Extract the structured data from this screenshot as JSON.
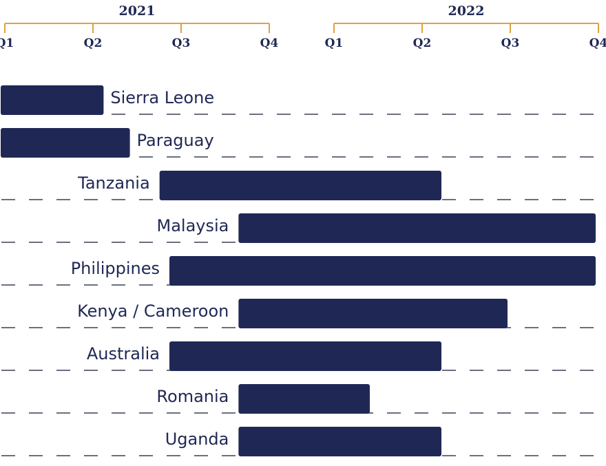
{
  "chart_data": {
    "type": "gantt",
    "years": [
      {
        "label": "2021",
        "quarters": [
          "Q1",
          "Q2",
          "Q3",
          "Q4"
        ]
      },
      {
        "label": "2022",
        "quarters": [
          "Q1",
          "Q2",
          "Q3",
          "Q4"
        ]
      }
    ],
    "series_color": "#1f2855",
    "axis_color": "#e0a040",
    "rows": [
      {
        "label": "Sierra Leone",
        "start": 2020.95,
        "end": 2021.3,
        "label_position": "right"
      },
      {
        "label": "Paraguay",
        "start": 2020.95,
        "end": 2021.38,
        "label_position": "right"
      },
      {
        "label": "Tanzania",
        "start": 2021.47,
        "end": 2022.39,
        "label_position": "left"
      },
      {
        "label": "Malaysia",
        "start": 2021.71,
        "end": 2022.95,
        "label_position": "left"
      },
      {
        "label": "Philippines",
        "start": 2021.5,
        "end": 2022.95,
        "label_position": "left"
      },
      {
        "label": "Kenya / Cameroon",
        "start": 2021.71,
        "end": 2022.63,
        "label_position": "left"
      },
      {
        "label": "Australia",
        "start": 2021.5,
        "end": 2022.39,
        "label_position": "left"
      },
      {
        "label": "Romania",
        "start": 2021.71,
        "end": 2022.13,
        "label_position": "left"
      },
      {
        "label": "Uganda",
        "start": 2021.71,
        "end": 2022.39,
        "label_position": "left"
      }
    ]
  }
}
